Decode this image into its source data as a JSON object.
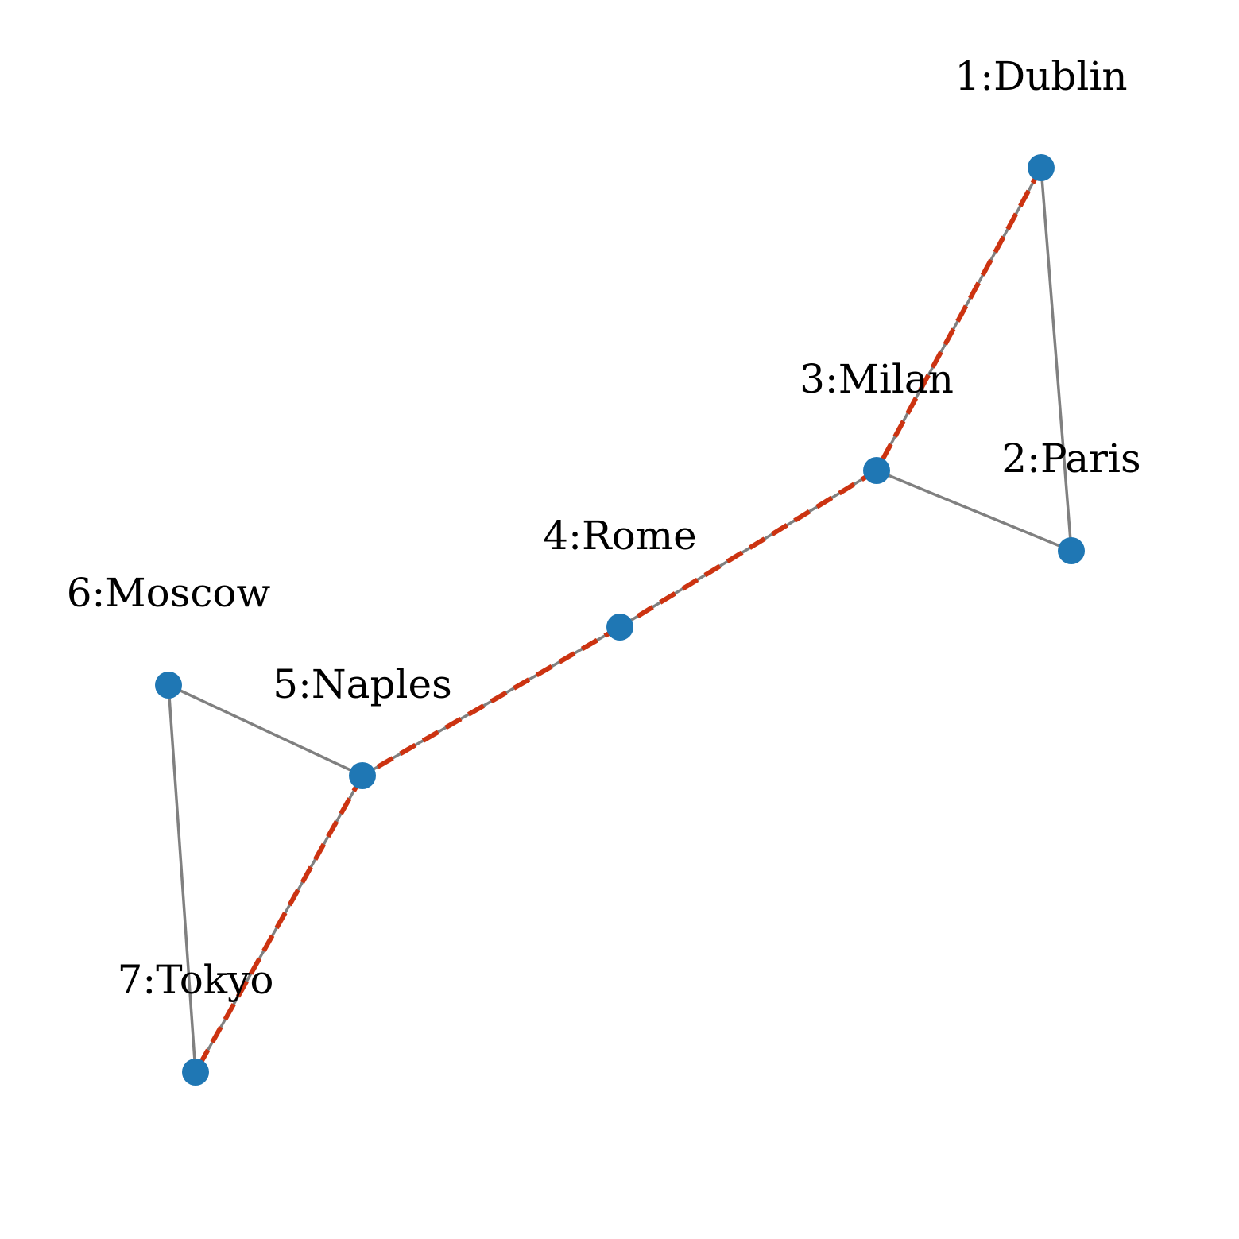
{
  "colors": {
    "node": "#1f77b4",
    "edge": "#808080",
    "path": "#cc3311",
    "label": "#000000",
    "background": "#ffffff"
  },
  "nodes": [
    {
      "id": "1",
      "label": "1:Dublin"
    },
    {
      "id": "2",
      "label": "2:Paris"
    },
    {
      "id": "3",
      "label": "3:Milan"
    },
    {
      "id": "4",
      "label": "4:Rome"
    },
    {
      "id": "5",
      "label": "5:Naples"
    },
    {
      "id": "6",
      "label": "6:Moscow"
    },
    {
      "id": "7",
      "label": "7:Tokyo"
    }
  ],
  "edges": [
    {
      "source": "1",
      "target": "2"
    },
    {
      "source": "1",
      "target": "3"
    },
    {
      "source": "2",
      "target": "3"
    },
    {
      "source": "3",
      "target": "4"
    },
    {
      "source": "4",
      "target": "5"
    },
    {
      "source": "5",
      "target": "6"
    },
    {
      "source": "5",
      "target": "7"
    },
    {
      "source": "6",
      "target": "7"
    }
  ],
  "highlighted_path": [
    "1",
    "3",
    "4",
    "5",
    "7"
  ]
}
